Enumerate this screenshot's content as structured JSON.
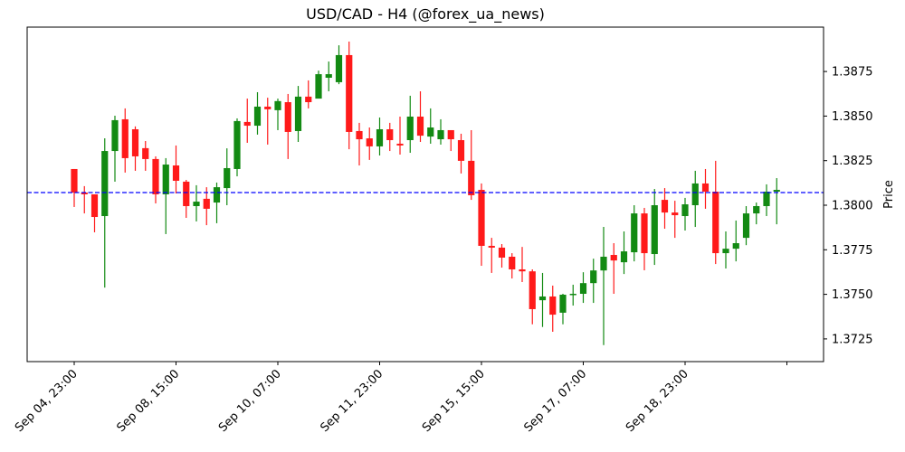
{
  "chart_data": {
    "type": "candlestick",
    "title": "USD/CAD - H4 (@forex_ua_news)",
    "xlabel": "",
    "ylabel": "Price",
    "ylim": [
      1.37115,
      1.39005
    ],
    "yticks": [
      "1.3725",
      "1.3750",
      "1.3775",
      "1.3800",
      "1.3825",
      "1.3850",
      "1.3875"
    ],
    "xticks": [
      "Sep 04, 23:00",
      "Sep 08, 15:00",
      "Sep 10, 07:00",
      "Sep 11, 23:00",
      "Sep 15, 15:00",
      "Sep 17, 07:00",
      "Sep 18, 23:00",
      ""
    ],
    "xtick_candle_index": [
      0,
      10,
      20,
      30,
      40,
      50,
      60,
      70
    ],
    "grid": false,
    "reference_line": {
      "value": 1.38071,
      "style": "dashed",
      "color": "#0000ff"
    },
    "colors": {
      "up": "#138a13",
      "down": "#ff1a1a"
    },
    "candles": [
      {
        "o": 1.38203,
        "c": 1.38071,
        "h": 1.38203,
        "l": 1.3799
      },
      {
        "o": 1.38071,
        "c": 1.38061,
        "h": 1.38107,
        "l": 1.37954
      },
      {
        "o": 1.38061,
        "c": 1.37934,
        "h": 1.38061,
        "l": 1.37848
      },
      {
        "o": 1.37939,
        "c": 1.38304,
        "h": 1.38375,
        "l": 1.37538
      },
      {
        "o": 1.38304,
        "c": 1.38477,
        "h": 1.38502,
        "l": 1.38132
      },
      {
        "o": 1.38482,
        "c": 1.38264,
        "h": 1.38543,
        "l": 1.38183
      },
      {
        "o": 1.38426,
        "c": 1.38274,
        "h": 1.38442,
        "l": 1.38193
      },
      {
        "o": 1.3832,
        "c": 1.38259,
        "h": 1.3836,
        "l": 1.38193
      },
      {
        "o": 1.38259,
        "c": 1.38061,
        "h": 1.38274,
        "l": 1.3801
      },
      {
        "o": 1.38061,
        "c": 1.38228,
        "h": 1.38264,
        "l": 1.37838
      },
      {
        "o": 1.38223,
        "c": 1.38137,
        "h": 1.38335,
        "l": 1.38066
      },
      {
        "o": 1.38132,
        "c": 1.37995,
        "h": 1.38142,
        "l": 1.37929
      },
      {
        "o": 1.37995,
        "c": 1.3802,
        "h": 1.38112,
        "l": 1.37909
      },
      {
        "o": 1.38036,
        "c": 1.3798,
        "h": 1.38101,
        "l": 1.37888
      },
      {
        "o": 1.38015,
        "c": 1.38101,
        "h": 1.38127,
        "l": 1.37899
      },
      {
        "o": 1.38096,
        "c": 1.38208,
        "h": 1.38319,
        "l": 1.38
      },
      {
        "o": 1.38203,
        "c": 1.38472,
        "h": 1.38487,
        "l": 1.38162
      },
      {
        "o": 1.38467,
        "c": 1.38446,
        "h": 1.38598,
        "l": 1.3835
      },
      {
        "o": 1.38446,
        "c": 1.38553,
        "h": 1.38634,
        "l": 1.38396
      },
      {
        "o": 1.38553,
        "c": 1.38538,
        "h": 1.38603,
        "l": 1.3834
      },
      {
        "o": 1.38533,
        "c": 1.38584,
        "h": 1.38598,
        "l": 1.38421
      },
      {
        "o": 1.38578,
        "c": 1.38411,
        "h": 1.38624,
        "l": 1.38259
      },
      {
        "o": 1.38416,
        "c": 1.38609,
        "h": 1.38669,
        "l": 1.38355
      },
      {
        "o": 1.38609,
        "c": 1.38578,
        "h": 1.387,
        "l": 1.38543
      },
      {
        "o": 1.38598,
        "c": 1.38735,
        "h": 1.38755,
        "l": 1.38634
      },
      {
        "o": 1.38715,
        "c": 1.38735,
        "h": 1.38806,
        "l": 1.38639
      },
      {
        "o": 1.3869,
        "c": 1.38842,
        "h": 1.38897,
        "l": 1.38679
      },
      {
        "o": 1.38842,
        "c": 1.38411,
        "h": 1.38918,
        "l": 1.38314
      },
      {
        "o": 1.38416,
        "c": 1.3837,
        "h": 1.38462,
        "l": 1.38223
      },
      {
        "o": 1.38375,
        "c": 1.3833,
        "h": 1.38436,
        "l": 1.38254
      },
      {
        "o": 1.3833,
        "c": 1.38426,
        "h": 1.38492,
        "l": 1.38279
      },
      {
        "o": 1.38426,
        "c": 1.38365,
        "h": 1.38462,
        "l": 1.38304
      },
      {
        "o": 1.38345,
        "c": 1.38335,
        "h": 1.38497,
        "l": 1.38284
      },
      {
        "o": 1.38365,
        "c": 1.38497,
        "h": 1.38614,
        "l": 1.38294
      },
      {
        "o": 1.38497,
        "c": 1.3839,
        "h": 1.38639,
        "l": 1.38355
      },
      {
        "o": 1.38385,
        "c": 1.38436,
        "h": 1.38543,
        "l": 1.38345
      },
      {
        "o": 1.3837,
        "c": 1.38421,
        "h": 1.38482,
        "l": 1.3834
      },
      {
        "o": 1.38421,
        "c": 1.3837,
        "h": 1.38421,
        "l": 1.38304
      },
      {
        "o": 1.38365,
        "c": 1.38249,
        "h": 1.38401,
        "l": 1.38178
      },
      {
        "o": 1.38249,
        "c": 1.38056,
        "h": 1.38421,
        "l": 1.3803
      },
      {
        "o": 1.38086,
        "c": 1.37772,
        "h": 1.38122,
        "l": 1.3766
      },
      {
        "o": 1.37772,
        "c": 1.37762,
        "h": 1.37817,
        "l": 1.3762
      },
      {
        "o": 1.37762,
        "c": 1.37706,
        "h": 1.37782,
        "l": 1.3765
      },
      {
        "o": 1.37711,
        "c": 1.3764,
        "h": 1.37731,
        "l": 1.37589
      },
      {
        "o": 1.3764,
        "c": 1.37629,
        "h": 1.37766,
        "l": 1.37569
      },
      {
        "o": 1.37629,
        "c": 1.37417,
        "h": 1.3764,
        "l": 1.37332
      },
      {
        "o": 1.37467,
        "c": 1.37488,
        "h": 1.3762,
        "l": 1.37317
      },
      {
        "o": 1.37488,
        "c": 1.37386,
        "h": 1.37549,
        "l": 1.3729
      },
      {
        "o": 1.37397,
        "c": 1.37498,
        "h": 1.37503,
        "l": 1.37332
      },
      {
        "o": 1.37498,
        "c": 1.37503,
        "h": 1.37554,
        "l": 1.37437
      },
      {
        "o": 1.37503,
        "c": 1.37563,
        "h": 1.37624,
        "l": 1.37452
      },
      {
        "o": 1.37563,
        "c": 1.37634,
        "h": 1.377,
        "l": 1.37452
      },
      {
        "o": 1.37634,
        "c": 1.37711,
        "h": 1.37878,
        "l": 1.37215
      },
      {
        "o": 1.37721,
        "c": 1.3769,
        "h": 1.37787,
        "l": 1.37503
      },
      {
        "o": 1.3768,
        "c": 1.37741,
        "h": 1.37853,
        "l": 1.37614
      },
      {
        "o": 1.37736,
        "c": 1.37954,
        "h": 1.38,
        "l": 1.37685
      },
      {
        "o": 1.37954,
        "c": 1.37731,
        "h": 1.37985,
        "l": 1.37635
      },
      {
        "o": 1.37726,
        "c": 1.38,
        "h": 1.38091,
        "l": 1.37665
      },
      {
        "o": 1.3803,
        "c": 1.37959,
        "h": 1.38096,
        "l": 1.37868
      },
      {
        "o": 1.37959,
        "c": 1.37944,
        "h": 1.38025,
        "l": 1.37817
      },
      {
        "o": 1.37939,
        "c": 1.38005,
        "h": 1.38041,
        "l": 1.37858
      },
      {
        "o": 1.38,
        "c": 1.38122,
        "h": 1.38193,
        "l": 1.37878
      },
      {
        "o": 1.38122,
        "c": 1.38076,
        "h": 1.38203,
        "l": 1.3798
      },
      {
        "o": 1.38076,
        "c": 1.37731,
        "h": 1.38249,
        "l": 1.3767
      },
      {
        "o": 1.37731,
        "c": 1.37756,
        "h": 1.37853,
        "l": 1.37645
      },
      {
        "o": 1.37756,
        "c": 1.37787,
        "h": 1.37914,
        "l": 1.37685
      },
      {
        "o": 1.37817,
        "c": 1.37954,
        "h": 1.37995,
        "l": 1.37776
      },
      {
        "o": 1.37954,
        "c": 1.37995,
        "h": 1.38015,
        "l": 1.37893
      },
      {
        "o": 1.37995,
        "c": 1.38076,
        "h": 1.38117,
        "l": 1.37939
      },
      {
        "o": 1.38076,
        "c": 1.38086,
        "h": 1.38152,
        "l": 1.37893
      }
    ]
  }
}
